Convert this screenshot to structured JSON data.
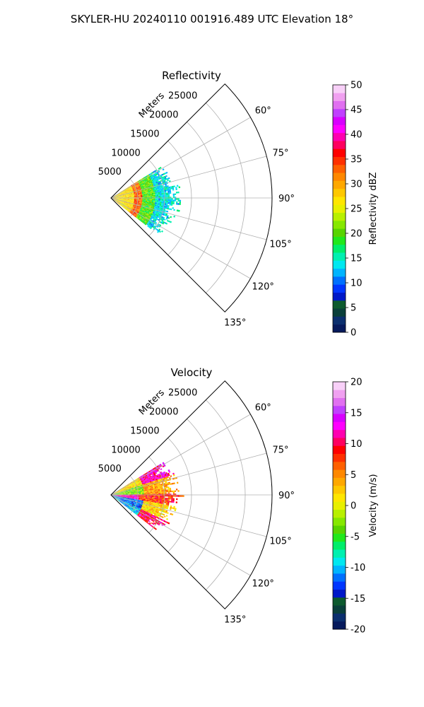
{
  "figure": {
    "suptitle": "SKYLER-HU  20240110  001916.489 UTC Elevation 18°"
  },
  "chart_data": [
    {
      "type": "heatmap",
      "projection": "polar-sector",
      "title": "Reflectivity",
      "radial_axis": {
        "label": "Meters",
        "ticks": [
          5000,
          10000,
          15000,
          20000,
          25000
        ],
        "range": [
          0,
          30000
        ]
      },
      "azimuth_axis": {
        "ticks": [
          60,
          75,
          90,
          105,
          120,
          135
        ],
        "tick_labels": [
          "60°",
          "75°",
          "90°",
          "105°",
          "120°",
          "135°"
        ],
        "range": [
          45,
          135
        ]
      },
      "grid": true,
      "colorbar": {
        "label": "Reflectivity dBZ",
        "range": [
          0,
          50
        ],
        "ticks": [
          0,
          5,
          10,
          15,
          20,
          25,
          30,
          35,
          40,
          45,
          50
        ],
        "colors": [
          "#061a5c",
          "#0b2f6e",
          "#0a3f3a",
          "#0d5a2e",
          "#0018c8",
          "#0036ff",
          "#0070ff",
          "#00b4ff",
          "#00e8f0",
          "#00f0b0",
          "#00ee6a",
          "#21e81c",
          "#58d400",
          "#86e800",
          "#b8f000",
          "#e8f000",
          "#ffe600",
          "#ffc800",
          "#ffa800",
          "#ff8800",
          "#ff6000",
          "#ff3000",
          "#ff0000",
          "#ff0060",
          "#ff00b0",
          "#ff00ff",
          "#d800ff",
          "#c040ff",
          "#e070f0",
          "#f0a0f0",
          "#f8d0f8"
        ]
      },
      "field_pattern": {
        "azimuth_extent": [
          58,
          128
        ],
        "max_range_m": 12500,
        "bands": [
          {
            "r_from": 0,
            "r_to": 4200,
            "dbz": 27
          },
          {
            "r_from": 4200,
            "r_to": 5800,
            "dbz": 33
          },
          {
            "r_from": 5800,
            "r_to": 8000,
            "dbz": 20
          },
          {
            "r_from": 8000,
            "r_to": 12500,
            "dbz": 14
          }
        ]
      }
    },
    {
      "type": "heatmap",
      "projection": "polar-sector",
      "title": "Velocity",
      "radial_axis": {
        "label": "Meters",
        "ticks": [
          5000,
          10000,
          15000,
          20000,
          25000
        ],
        "range": [
          0,
          30000
        ]
      },
      "azimuth_axis": {
        "ticks": [
          60,
          75,
          90,
          105,
          120,
          135
        ],
        "tick_labels": [
          "60°",
          "75°",
          "90°",
          "105°",
          "120°",
          "135°"
        ],
        "range": [
          45,
          135
        ]
      },
      "grid": true,
      "colorbar": {
        "label": "Velocity (m/s)",
        "range": [
          -20,
          20
        ],
        "ticks": [
          -20,
          -15,
          -10,
          -5,
          0,
          5,
          10,
          15,
          20
        ],
        "colors": [
          "#061a5c",
          "#0b2f6e",
          "#0a3f3a",
          "#0d5a2e",
          "#0018c8",
          "#0036ff",
          "#0070ff",
          "#00b4ff",
          "#00e8f0",
          "#00f0b0",
          "#00ee6a",
          "#21e81c",
          "#58d400",
          "#86e800",
          "#b8f000",
          "#e8f000",
          "#ffe600",
          "#ffc800",
          "#ffa800",
          "#ff8800",
          "#ff6000",
          "#ff3000",
          "#ff0000",
          "#ff0060",
          "#ff00b0",
          "#ff00ff",
          "#d800ff",
          "#c040ff",
          "#e070f0",
          "#f0a0f0",
          "#f8d0f8"
        ]
      },
      "field_pattern": {
        "azimuth_extent": [
          58,
          128
        ],
        "max_range_m": 12500,
        "sectors": [
          {
            "az_from": 58,
            "az_to": 72,
            "bands": [
              {
                "r_from": 0,
                "r_to": 6000,
                "v": 2
              },
              {
                "r_from": 6000,
                "r_to": 12500,
                "v": 12
              }
            ]
          },
          {
            "az_from": 72,
            "az_to": 88,
            "bands": [
              {
                "r_from": 0,
                "r_to": 6000,
                "v": -3
              },
              {
                "r_from": 6000,
                "r_to": 12500,
                "v": 4
              }
            ]
          },
          {
            "az_from": 88,
            "az_to": 100,
            "bands": [
              {
                "r_from": 0,
                "r_to": 5000,
                "v": 12
              },
              {
                "r_from": 5000,
                "r_to": 12500,
                "v": 8
              }
            ]
          },
          {
            "az_from": 100,
            "az_to": 115,
            "bands": [
              {
                "r_from": 0,
                "r_to": 6000,
                "v": -12
              },
              {
                "r_from": 6000,
                "r_to": 12500,
                "v": 2
              }
            ]
          },
          {
            "az_from": 115,
            "az_to": 128,
            "bands": [
              {
                "r_from": 0,
                "r_to": 6000,
                "v": -10
              },
              {
                "r_from": 6000,
                "r_to": 12500,
                "v": 10
              }
            ]
          }
        ]
      }
    }
  ]
}
